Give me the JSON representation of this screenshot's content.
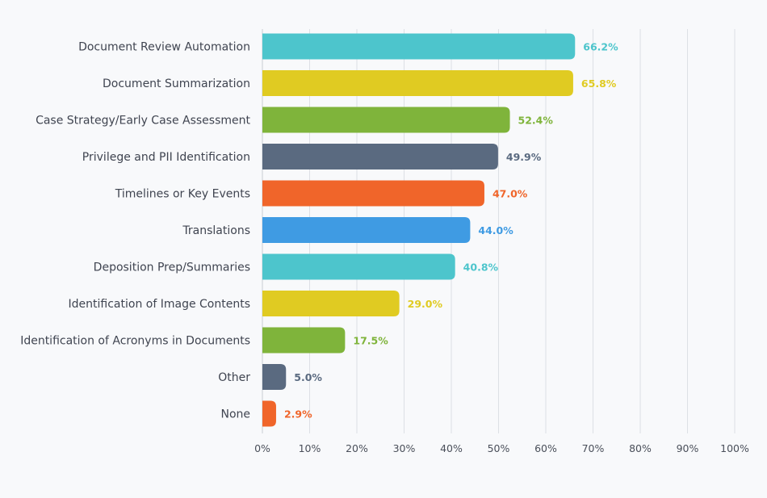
{
  "chart_data": {
    "type": "bar",
    "orientation": "horizontal",
    "title": "",
    "xlabel": "",
    "ylabel": "",
    "xlim": [
      0,
      100
    ],
    "grid": true,
    "legend": "none",
    "categories": [
      "Document Review Automation",
      "Document Summarization",
      "Case Strategy/Early Case Assessment",
      "Privilege and PII Identification",
      "Timelines or Key Events",
      "Translations",
      "Deposition Prep/Summaries",
      "Identification of Image Contents",
      "Identification of Acronyms in Documents",
      "Other",
      "None"
    ],
    "values": [
      66.2,
      65.8,
      52.4,
      49.9,
      47.0,
      44.0,
      40.8,
      29.0,
      17.5,
      5.0,
      2.9
    ],
    "value_labels": [
      "66.2%",
      "65.8%",
      "52.4%",
      "49.9%",
      "47.0%",
      "44.0%",
      "40.8%",
      "29.0%",
      "17.5%",
      "5.0%",
      "2.9%"
    ],
    "colors": [
      "#4dc5cc",
      "#e0cb22",
      "#7fb43b",
      "#5a6a80",
      "#f0652a",
      "#3f9be3",
      "#4dc5cc",
      "#e0cb22",
      "#7fb43b",
      "#5a6a80",
      "#f0652a"
    ],
    "x_ticks": [
      0,
      10,
      20,
      30,
      40,
      50,
      60,
      70,
      80,
      90,
      100
    ],
    "x_tick_labels": [
      "0%",
      "10%",
      "20%",
      "30%",
      "40%",
      "50%",
      "60%",
      "70%",
      "80%",
      "90%",
      "100%"
    ]
  }
}
